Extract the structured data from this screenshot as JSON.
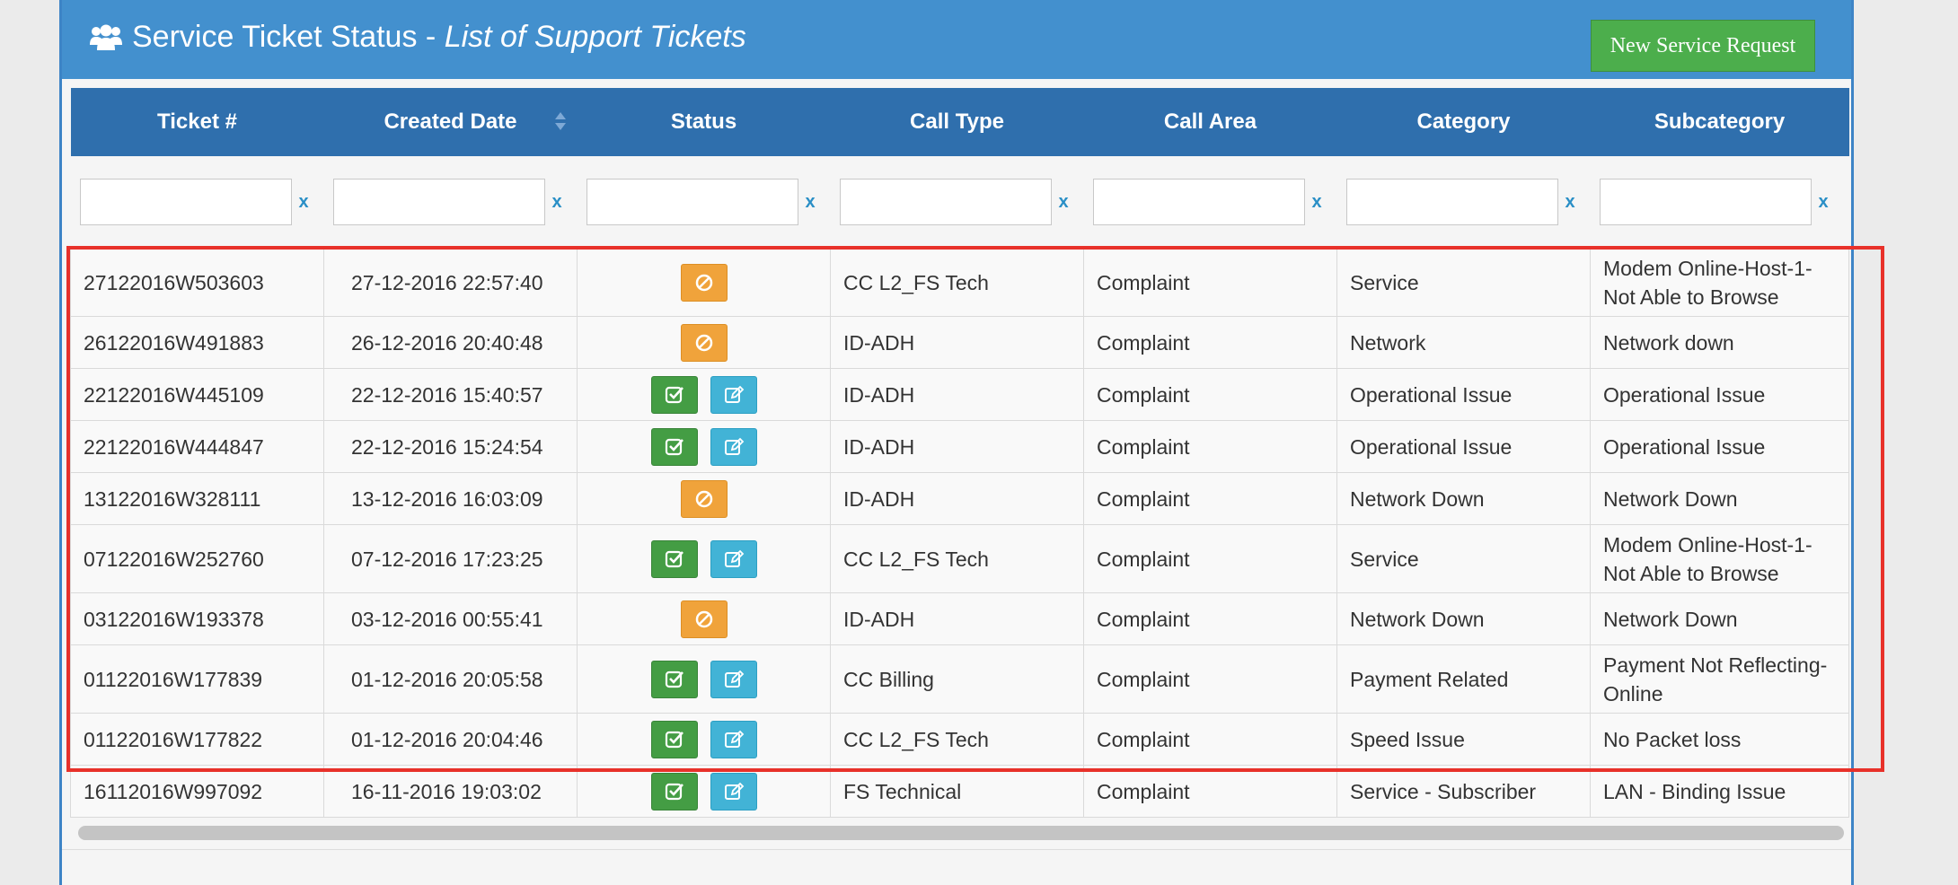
{
  "header": {
    "title_main": "Service Ticket Status -",
    "title_sub": "List of Support Tickets",
    "new_button": "New Service Request",
    "icon": "users-icon"
  },
  "columns": [
    "Ticket #",
    "Created Date",
    "Status",
    "Call Type",
    "Call Area",
    "Category",
    "Subcategory"
  ],
  "filter_clear_label": "x",
  "colors": {
    "header_bg": "#4390ce",
    "table_header_bg": "#2f6fad",
    "new_button": "#4cae4c",
    "status_blocked": "#f0a33b",
    "status_done": "#449d44",
    "status_edit": "#42b3d6",
    "highlight": "#e8312a"
  },
  "rows": [
    {
      "ticket": "27122016W503603",
      "date": "27-12-2016 22:57:40",
      "status": "blocked",
      "call_type": "CC L2_FS Tech",
      "call_area": "Complaint",
      "category": "Service",
      "subcategory": "Modem Online-Host-1-Not Able to Browse"
    },
    {
      "ticket": "26122016W491883",
      "date": "26-12-2016 20:40:48",
      "status": "blocked",
      "call_type": "ID-ADH",
      "call_area": "Complaint",
      "category": "Network",
      "subcategory": "Network down"
    },
    {
      "ticket": "22122016W445109",
      "date": "22-12-2016 15:40:57",
      "status": "resolved",
      "call_type": "ID-ADH",
      "call_area": "Complaint",
      "category": "Operational Issue",
      "subcategory": "Operational Issue"
    },
    {
      "ticket": "22122016W444847",
      "date": "22-12-2016 15:24:54",
      "status": "resolved",
      "call_type": "ID-ADH",
      "call_area": "Complaint",
      "category": "Operational Issue",
      "subcategory": "Operational Issue"
    },
    {
      "ticket": "13122016W328111",
      "date": "13-12-2016 16:03:09",
      "status": "blocked",
      "call_type": "ID-ADH",
      "call_area": "Complaint",
      "category": "Network Down",
      "subcategory": "Network Down"
    },
    {
      "ticket": "07122016W252760",
      "date": "07-12-2016 17:23:25",
      "status": "resolved",
      "call_type": "CC L2_FS Tech",
      "call_area": "Complaint",
      "category": "Service",
      "subcategory": "Modem Online-Host-1-Not Able to Browse"
    },
    {
      "ticket": "03122016W193378",
      "date": "03-12-2016 00:55:41",
      "status": "blocked",
      "call_type": "ID-ADH",
      "call_area": "Complaint",
      "category": "Network Down",
      "subcategory": "Network Down"
    },
    {
      "ticket": "01122016W177839",
      "date": "01-12-2016 20:05:58",
      "status": "resolved",
      "call_type": "CC Billing",
      "call_area": "Complaint",
      "category": "Payment Related",
      "subcategory": "Payment Not Reflecting-Online"
    },
    {
      "ticket": "01122016W177822",
      "date": "01-12-2016 20:04:46",
      "status": "resolved",
      "call_type": "CC L2_FS Tech",
      "call_area": "Complaint",
      "category": "Speed Issue",
      "subcategory": "No Packet loss"
    },
    {
      "ticket": "16112016W997092",
      "date": "16-11-2016 19:03:02",
      "status": "resolved",
      "call_type": "FS Technical",
      "call_area": "Complaint",
      "category": "Service - Subscriber",
      "subcategory": "LAN - Binding Issue"
    }
  ]
}
